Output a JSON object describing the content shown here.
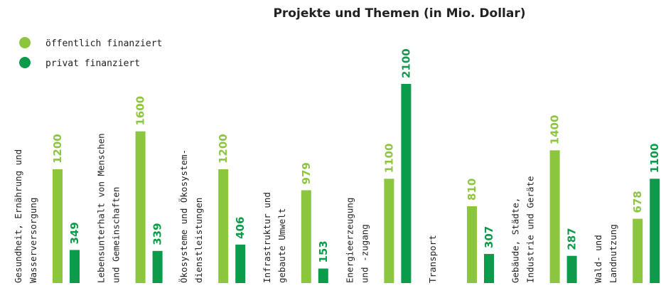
{
  "chart_data": {
    "type": "bar",
    "title": "Projekte und Themen (in Mio. Dollar)",
    "categories": [
      [
        "Gesundheit, Ernährung und",
        "Wasserversorgung"
      ],
      [
        "Lebensunterhalt von Menschen",
        "und Gemeinschaften"
      ],
      [
        "Ökosysteme und Ökosystem-",
        "dienstleistungen"
      ],
      [
        "Infrastruktur und",
        "gebaute Umwelt"
      ],
      [
        "Energieerzeugung",
        "und -zugang"
      ],
      [
        "Transport"
      ],
      [
        "Gebäude, Städte,",
        "Industrie und Geräte"
      ],
      [
        "Wald- und",
        "Landnutzung"
      ]
    ],
    "series": [
      {
        "name": "öffentlich finanziert",
        "color": "#8cc63f",
        "values": [
          1200,
          1600,
          1200,
          979,
          1100,
          810,
          1400,
          678
        ],
        "labels": [
          "1200",
          "1600",
          "1200",
          "979",
          "1100",
          "810",
          "1400",
          "678"
        ]
      },
      {
        "name": "privat finanziert",
        "color": "#0c9b4a",
        "values": [
          349,
          339,
          406,
          153,
          2100,
          307,
          287,
          1100
        ],
        "labels": [
          "349",
          "339",
          "406",
          "153",
          "2100",
          "307",
          "287",
          "1100"
        ]
      }
    ],
    "legend": "top-left",
    "grid": false
  }
}
